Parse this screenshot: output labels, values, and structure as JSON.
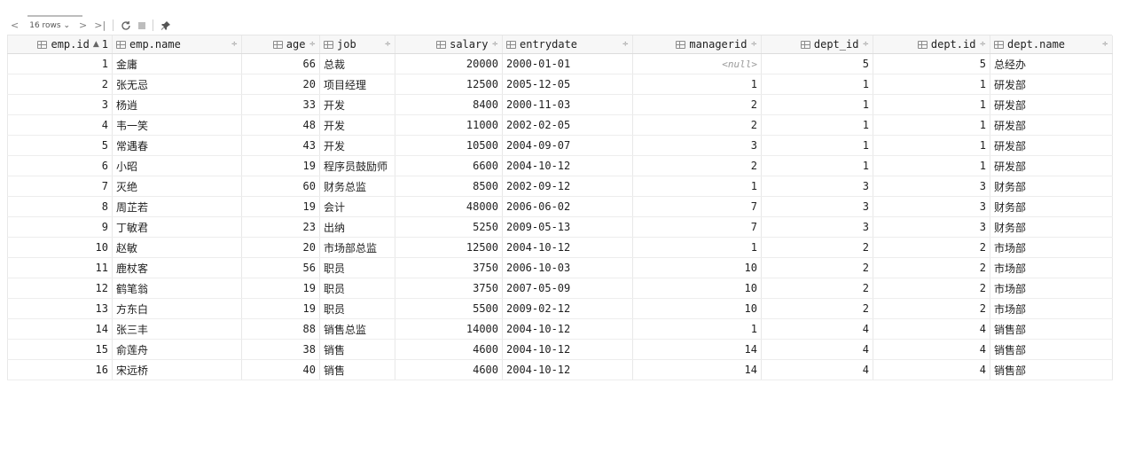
{
  "toolbar": {
    "rows_label": "16 rows",
    "prev_first": "<",
    "prev": "∨",
    "next": ">",
    "last": ">|"
  },
  "columns": [
    {
      "name": "emp.id",
      "sort": "▲",
      "sort_index": "1"
    },
    {
      "name": "emp.name",
      "sort": "÷"
    },
    {
      "name": "age",
      "sort": "÷"
    },
    {
      "name": "job",
      "sort": "÷"
    },
    {
      "name": "salary",
      "sort": "÷"
    },
    {
      "name": "entrydate",
      "sort": "÷"
    },
    {
      "name": "managerid",
      "sort": "÷"
    },
    {
      "name": "dept_id",
      "sort": "÷"
    },
    {
      "name": "dept.id",
      "sort": "÷"
    },
    {
      "name": "dept.name",
      "sort": "÷"
    }
  ],
  "rows": [
    [
      "1",
      "金庸",
      "66",
      "总裁",
      "20000",
      "2000-01-01",
      "<null>",
      "5",
      "5",
      "总经办"
    ],
    [
      "2",
      "张无忌",
      "20",
      "项目经理",
      "12500",
      "2005-12-05",
      "1",
      "1",
      "1",
      "研发部"
    ],
    [
      "3",
      "杨逍",
      "33",
      "开发",
      "8400",
      "2000-11-03",
      "2",
      "1",
      "1",
      "研发部"
    ],
    [
      "4",
      "韦一笑",
      "48",
      "开发",
      "11000",
      "2002-02-05",
      "2",
      "1",
      "1",
      "研发部"
    ],
    [
      "5",
      "常遇春",
      "43",
      "开发",
      "10500",
      "2004-09-07",
      "3",
      "1",
      "1",
      "研发部"
    ],
    [
      "6",
      "小昭",
      "19",
      "程序员鼓励师",
      "6600",
      "2004-10-12",
      "2",
      "1",
      "1",
      "研发部"
    ],
    [
      "7",
      "灭绝",
      "60",
      "财务总监",
      "8500",
      "2002-09-12",
      "1",
      "3",
      "3",
      "财务部"
    ],
    [
      "8",
      "周芷若",
      "19",
      "会计",
      "48000",
      "2006-06-02",
      "7",
      "3",
      "3",
      "财务部"
    ],
    [
      "9",
      "丁敏君",
      "23",
      "出纳",
      "5250",
      "2009-05-13",
      "7",
      "3",
      "3",
      "财务部"
    ],
    [
      "10",
      "赵敏",
      "20",
      "市场部总监",
      "12500",
      "2004-10-12",
      "1",
      "2",
      "2",
      "市场部"
    ],
    [
      "11",
      "鹿杖客",
      "56",
      "职员",
      "3750",
      "2006-10-03",
      "10",
      "2",
      "2",
      "市场部"
    ],
    [
      "12",
      "鹤笔翁",
      "19",
      "职员",
      "3750",
      "2007-05-09",
      "10",
      "2",
      "2",
      "市场部"
    ],
    [
      "13",
      "方东白",
      "19",
      "职员",
      "5500",
      "2009-02-12",
      "10",
      "2",
      "2",
      "市场部"
    ],
    [
      "14",
      "张三丰",
      "88",
      "销售总监",
      "14000",
      "2004-10-12",
      "1",
      "4",
      "4",
      "销售部"
    ],
    [
      "15",
      "俞莲舟",
      "38",
      "销售",
      "4600",
      "2004-10-12",
      "14",
      "4",
      "4",
      "销售部"
    ],
    [
      "16",
      "宋远桥",
      "40",
      "销售",
      "4600",
      "2004-10-12",
      "14",
      "4",
      "4",
      "销售部"
    ]
  ]
}
